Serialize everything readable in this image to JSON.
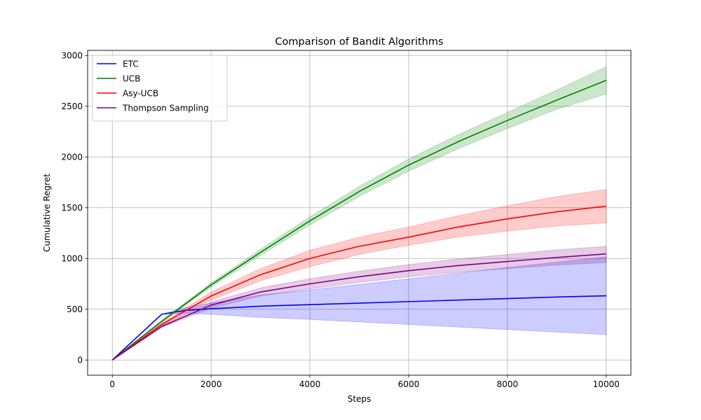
{
  "chart_data": {
    "type": "line",
    "title": "Comparison of Bandit Algorithms",
    "xlabel": "Steps",
    "ylabel": "Cumulative Regret",
    "xlim": [
      -500,
      10500
    ],
    "ylim": [
      -150,
      3050
    ],
    "xticks": [
      0,
      2000,
      4000,
      6000,
      8000,
      10000
    ],
    "yticks": [
      0,
      500,
      1000,
      1500,
      2000,
      2500,
      3000
    ],
    "grid": true,
    "legend_position": "top-left",
    "series": [
      {
        "name": "ETC",
        "color": "#0000ff",
        "x": [
          0,
          1000,
          1500,
          2000,
          3000,
          4000,
          5000,
          6000,
          7000,
          8000,
          9000,
          10000
        ],
        "y": [
          0,
          450,
          490,
          505,
          530,
          545,
          560,
          575,
          590,
          605,
          620,
          632
        ],
        "lower": [
          0,
          450,
          460,
          450,
          420,
          400,
          375,
          350,
          325,
          300,
          275,
          250
        ],
        "upper": [
          0,
          450,
          520,
          560,
          640,
          690,
          745,
          800,
          855,
          910,
          965,
          1015
        ]
      },
      {
        "name": "UCB",
        "color": "#008000",
        "x": [
          0,
          1000,
          2000,
          3000,
          4000,
          5000,
          6000,
          7000,
          8000,
          9000,
          10000
        ],
        "y": [
          0,
          380,
          740,
          1060,
          1370,
          1660,
          1920,
          2150,
          2360,
          2560,
          2755
        ],
        "lower": [
          0,
          370,
          720,
          1030,
          1330,
          1610,
          1860,
          2080,
          2280,
          2470,
          2620
        ],
        "upper": [
          0,
          390,
          760,
          1090,
          1410,
          1710,
          1980,
          2220,
          2440,
          2660,
          2890
        ]
      },
      {
        "name": "Asy-UCB",
        "color": "#ff0000",
        "x": [
          0,
          1000,
          2000,
          3000,
          4000,
          5000,
          6000,
          7000,
          8000,
          9000,
          10000
        ],
        "y": [
          0,
          350,
          630,
          840,
          1000,
          1120,
          1210,
          1310,
          1390,
          1460,
          1515
        ],
        "lower": [
          0,
          335,
          590,
          780,
          920,
          1040,
          1130,
          1210,
          1270,
          1320,
          1350
        ],
        "upper": [
          0,
          365,
          670,
          900,
          1080,
          1210,
          1310,
          1420,
          1520,
          1610,
          1680
        ]
      },
      {
        "name": "Thompson Sampling",
        "color": "#800080",
        "x": [
          0,
          1000,
          2000,
          3000,
          4000,
          5000,
          6000,
          7000,
          8000,
          9000,
          10000
        ],
        "y": [
          0,
          330,
          540,
          670,
          750,
          820,
          880,
          930,
          970,
          1010,
          1045
        ],
        "lower": [
          0,
          320,
          510,
          630,
          700,
          765,
          820,
          865,
          900,
          935,
          960
        ],
        "upper": [
          0,
          340,
          570,
          710,
          800,
          875,
          940,
          995,
          1040,
          1085,
          1120
        ]
      }
    ]
  }
}
